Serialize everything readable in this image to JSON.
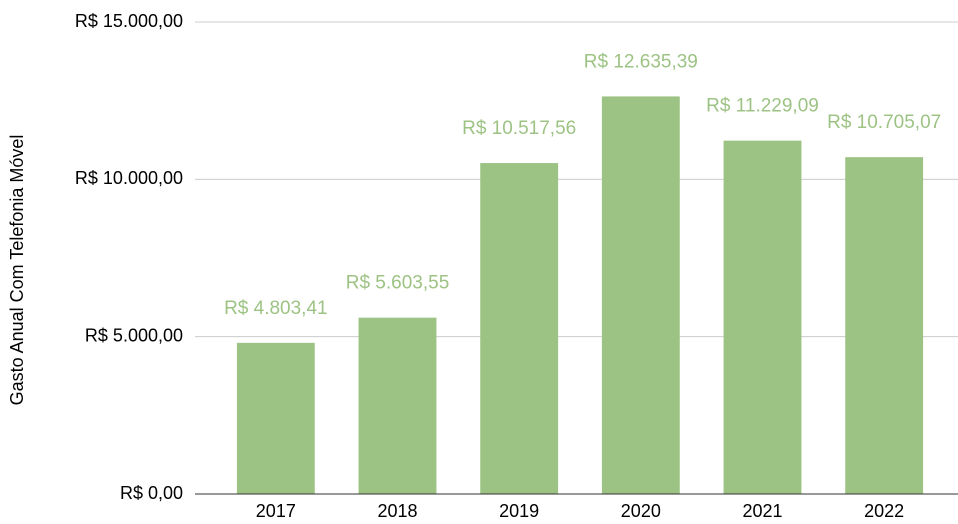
{
  "chart_data": {
    "type": "bar",
    "y_label": "Gasto Anual Com Telefonia Móvel",
    "categories": [
      "2017",
      "2018",
      "2019",
      "2020",
      "2021",
      "2022"
    ],
    "values": [
      4803.41,
      5603.55,
      10517.56,
      12635.39,
      11229.09,
      10705.07
    ],
    "value_labels": [
      "R$ 4.803,41",
      "R$ 5.603,55",
      "R$ 10.517,56",
      "R$ 12.635,39",
      "R$ 11.229,09",
      "R$ 10.705,07"
    ],
    "color": "#9dc384",
    "ylim": [
      0,
      15000
    ],
    "yticks": [
      {
        "value": 0,
        "label": "R$ 0,00"
      },
      {
        "value": 5000,
        "label": "R$ 5.000,00"
      },
      {
        "value": 10000,
        "label": "R$ 10.000,00"
      },
      {
        "value": 15000,
        "label": "R$ 15.000,00"
      }
    ],
    "grid": true
  }
}
